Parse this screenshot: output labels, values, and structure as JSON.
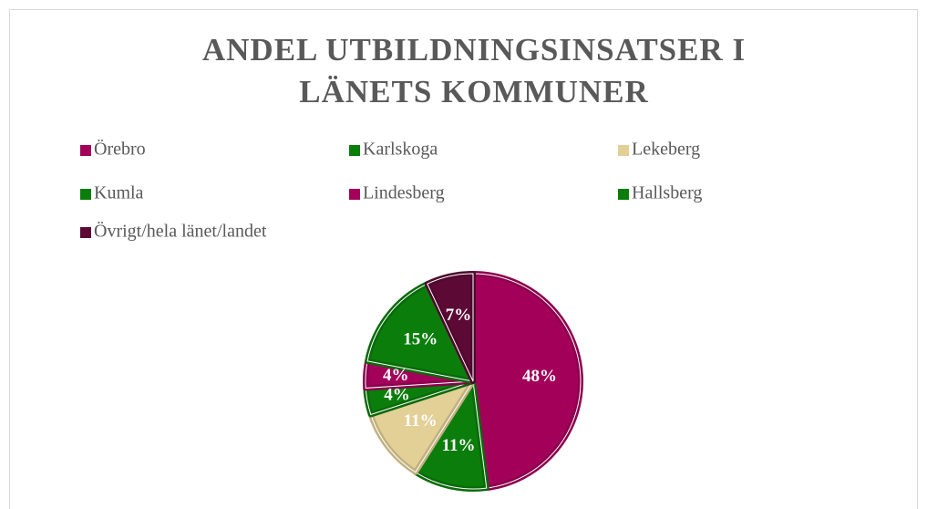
{
  "chart_data": {
    "type": "pie",
    "title": "ANDEL UTBILDNINGSINSATSER I LÄNETS KOMMUNER",
    "categories": [
      "Örebro",
      "Karlskoga",
      "Lekeberg",
      "Kumla",
      "Lindesberg",
      "Hallsberg",
      "Övrigt/hela länet/landet"
    ],
    "values": [
      48,
      11,
      11,
      4,
      4,
      15,
      7
    ],
    "value_labels": [
      "48%",
      "11%",
      "11%",
      "4%",
      "4%",
      "15%",
      "7%"
    ],
    "colors": [
      "#a3005a",
      "#0b7d0b",
      "#e3d096",
      "#0b7d0b",
      "#a3005a",
      "#0b7d0b",
      "#5c0a35"
    ],
    "legend": "top"
  }
}
